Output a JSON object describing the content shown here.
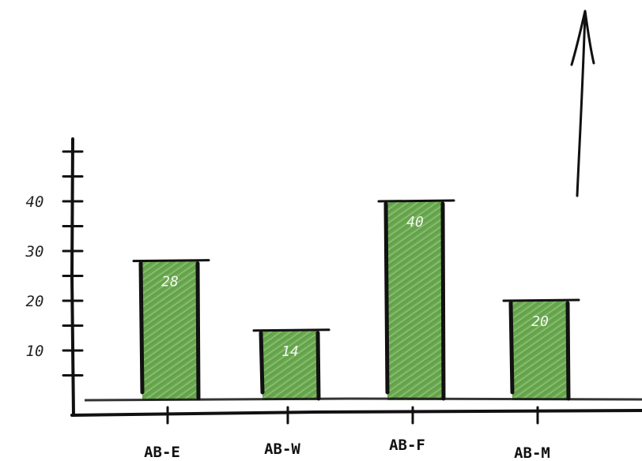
{
  "chart_data": {
    "type": "bar",
    "title": "",
    "xlabel": "",
    "ylabel": "",
    "categories": [
      "AB-E",
      "AB-W",
      "AB-F",
      "AB-M"
    ],
    "values": [
      28,
      14,
      40,
      20
    ],
    "data_labels": [
      "28",
      "14",
      "40",
      "20"
    ],
    "y_ticks": [
      10,
      20,
      30,
      40
    ],
    "ylim": [
      0,
      50
    ],
    "grid": false,
    "legend": "none",
    "bar_color": "#6aa84f",
    "style": "hand-drawn sketch"
  }
}
